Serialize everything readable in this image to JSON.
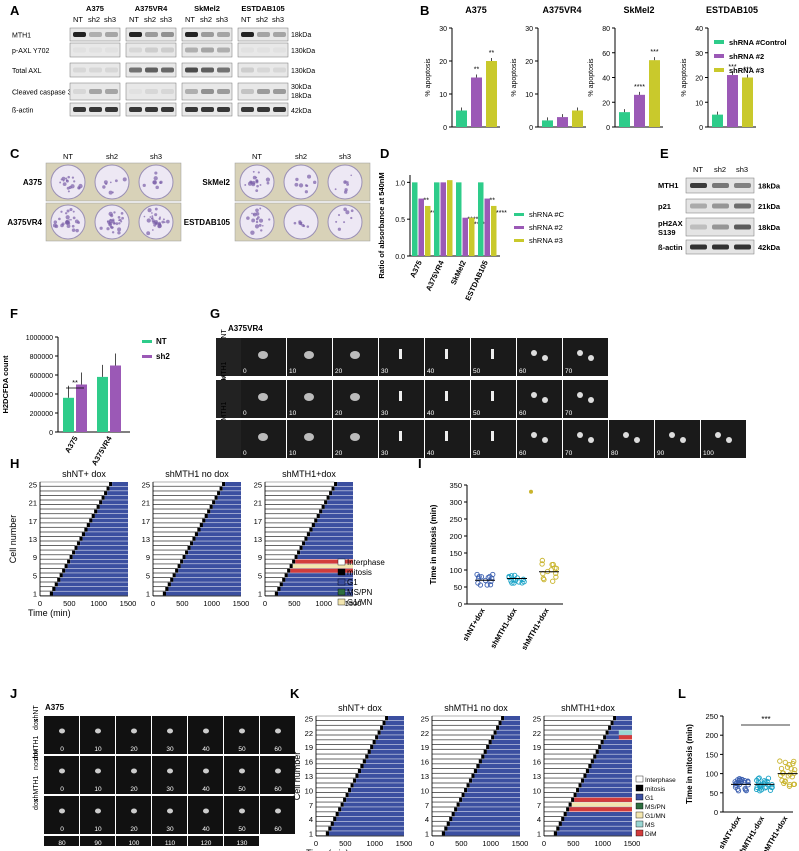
{
  "panels": [
    "A",
    "B",
    "C",
    "D",
    "E",
    "F",
    "G",
    "H",
    "I",
    "J",
    "K",
    "L"
  ],
  "panelA": {
    "cell_lines": [
      "A375",
      "A375VR4",
      "SkMel2",
      "ESTDAB105"
    ],
    "lanes": [
      "NT",
      "sh2",
      "sh3"
    ],
    "rows": [
      "MTH1",
      "p-AXL Y702",
      "Total  AXL",
      "Cleaved caspase 3",
      "ß-actin"
    ],
    "sizes": [
      "18kDa",
      "130kDa",
      "130kDa",
      "30kDa",
      "18kDa",
      "42kDa"
    ]
  },
  "panelB": {
    "ylabel": "% apoptosis",
    "legend": [
      "shRNA #Control",
      "shRNA #2",
      "shRNA #3"
    ],
    "colors": [
      "#2ecc8a",
      "#9b59b6",
      "#c9c92c"
    ],
    "charts": [
      {
        "title": "A375",
        "ymax": 30,
        "ticks": [
          "0",
          "10",
          "20",
          "30"
        ],
        "values": [
          5,
          15,
          20
        ],
        "sig": [
          "",
          "**",
          "**"
        ]
      },
      {
        "title": "A375VR4",
        "ymax": 30,
        "ticks": [
          "0",
          "10",
          "20",
          "30"
        ],
        "values": [
          2,
          3,
          5
        ],
        "sig": [
          "",
          "",
          ""
        ]
      },
      {
        "title": "SkMel2",
        "ymax": 80,
        "ticks": [
          "0",
          "20",
          "40",
          "60",
          "80"
        ],
        "values": [
          12,
          26,
          54
        ],
        "sig": [
          "",
          "****",
          "***"
        ]
      },
      {
        "title": "ESTDAB105",
        "ymax": 40,
        "ticks": [
          "0",
          "10",
          "20",
          "30",
          "40"
        ],
        "values": [
          5,
          21,
          20
        ],
        "sig": [
          "",
          "***",
          "***"
        ]
      }
    ]
  },
  "panelC": {
    "left": {
      "cols": [
        "NT",
        "sh2",
        "sh3"
      ],
      "rows": [
        "A375",
        "A375VR4"
      ]
    },
    "right": {
      "cols": [
        "NT",
        "sh2",
        "sh3"
      ],
      "rows": [
        "SkMel2",
        "ESTDAB105"
      ]
    }
  },
  "chart_data": [
    {
      "type": "bar",
      "title": "",
      "ylabel": "Ratio of absorbance at 540nM",
      "ylim": [
        0,
        1.1
      ],
      "ticks": [
        "0.0",
        "0.5",
        "1.0"
      ],
      "categories": [
        "A375",
        "A375VR4",
        "SkMel2",
        "ESTDAB105"
      ],
      "legend": [
        "shRNA #C",
        "shRNA #2",
        "shRNA #3"
      ],
      "series": [
        {
          "name": "shRNA #C",
          "values": [
            1.0,
            1.0,
            1.0,
            1.0
          ]
        },
        {
          "name": "shRNA #2",
          "values": [
            0.78,
            1.0,
            0.52,
            0.78
          ]
        },
        {
          "name": "shRNA #3",
          "values": [
            0.68,
            1.03,
            0.52,
            0.68
          ]
        }
      ],
      "sig": [
        [
          "",
          "**",
          "***"
        ],
        [
          "",
          "",
          ""
        ],
        [
          "",
          "****",
          "****"
        ],
        [
          "",
          "**",
          "****"
        ]
      ]
    },
    {
      "type": "bar",
      "title": "",
      "ylabel": "H2DCFDA count",
      "ylim": [
        0,
        1000000
      ],
      "ticks": [
        "0",
        "200000",
        "400000",
        "600000",
        "800000",
        "1000000"
      ],
      "categories": [
        "A375",
        "A375VR4"
      ],
      "legend": [
        "NT",
        "sh2"
      ],
      "series": [
        {
          "name": "NT",
          "values": [
            360000,
            580000
          ]
        },
        {
          "name": "sh2",
          "values": [
            500000,
            700000
          ]
        }
      ],
      "sig": "**"
    },
    {
      "type": "scatter",
      "ylabel": "Time in mitosis (min)",
      "ylim": [
        0,
        350
      ],
      "ticks": [
        "0",
        "50",
        "100",
        "150",
        "200",
        "250",
        "300",
        "350"
      ],
      "categories": [
        "shNT+dox",
        "shMTH1-dox",
        "shMTH1+dox"
      ],
      "means": [
        70,
        75,
        95
      ],
      "outlier": 330
    },
    {
      "type": "scatter",
      "ylabel": "Time in mitosis (min)",
      "ylim": [
        0,
        250
      ],
      "ticks": [
        "0",
        "50",
        "100",
        "150",
        "200",
        "250"
      ],
      "categories": [
        "shNT+dox",
        "shMTH1-dox",
        "shMTH1+dox"
      ],
      "means": [
        72,
        72,
        100
      ],
      "sig": "***"
    }
  ],
  "panelE": {
    "lanes": [
      "NT",
      "sh2",
      "sh3"
    ],
    "rows": [
      "MTH1",
      "p21",
      "pH2AX\nS139",
      "ß-actin"
    ],
    "sizes": [
      "18kDa",
      "21kDa",
      "18kDa",
      "42kDa"
    ]
  },
  "panelG": {
    "title": "A375VR4",
    "rows": [
      {
        "label": "shNT\ndox",
        "times": [
          "0",
          "10",
          "20",
          "30",
          "40",
          "50",
          "60",
          "70"
        ]
      },
      {
        "label": "shMTH1\nno dox",
        "times": [
          "0",
          "10",
          "20",
          "30",
          "40",
          "50",
          "60",
          "70"
        ]
      },
      {
        "label": "shMTH1\ndox",
        "times": [
          "0",
          "10",
          "20",
          "30",
          "40",
          "50",
          "60",
          "70",
          "80",
          "90",
          "100"
        ]
      }
    ]
  },
  "panelH": {
    "titles": [
      "shNT+ dox",
      "shMTH1 no dox",
      "shMTH1+dox"
    ],
    "ylabel": "Cell number",
    "xlabel": "Time (min)",
    "yticks": [
      "1",
      "5",
      "9",
      "13",
      "17",
      "21",
      "25"
    ],
    "xticks": [
      "0",
      "500",
      "1000",
      "1500"
    ],
    "legend": [
      "Interphase",
      "mitosis",
      "G1",
      "MS/PN",
      "G1/MN"
    ]
  },
  "panelJ": {
    "title": "A375",
    "rows": [
      {
        "label": "shNT\ndox",
        "times": [
          "0",
          "10",
          "20",
          "30",
          "40",
          "50",
          "60"
        ]
      },
      {
        "label": "shMTH1\nno dox",
        "times": [
          "0",
          "10",
          "20",
          "30",
          "40",
          "50",
          "60"
        ]
      },
      {
        "label": "shMTH1\ndox",
        "times": [
          "0",
          "10",
          "20",
          "30",
          "40",
          "50",
          "60"
        ]
      },
      {
        "label": "",
        "times": [
          "80",
          "90",
          "100",
          "110",
          "120",
          "130"
        ]
      }
    ]
  },
  "panelK": {
    "titles": [
      "shNT+ dox",
      "shMTH1 no dox",
      "shMTH1+dox"
    ],
    "ylabel": "Cell number",
    "xlabel": "Time (min)",
    "yticks": [
      "1",
      "4",
      "7",
      "10",
      "13",
      "16",
      "19",
      "22",
      "25"
    ],
    "xticks": [
      "0",
      "500",
      "1000",
      "1500"
    ],
    "legend": [
      "Interphase",
      "mitosis",
      "G1",
      "MS/PN",
      "G1/MN",
      "MS",
      "DiM"
    ]
  }
}
